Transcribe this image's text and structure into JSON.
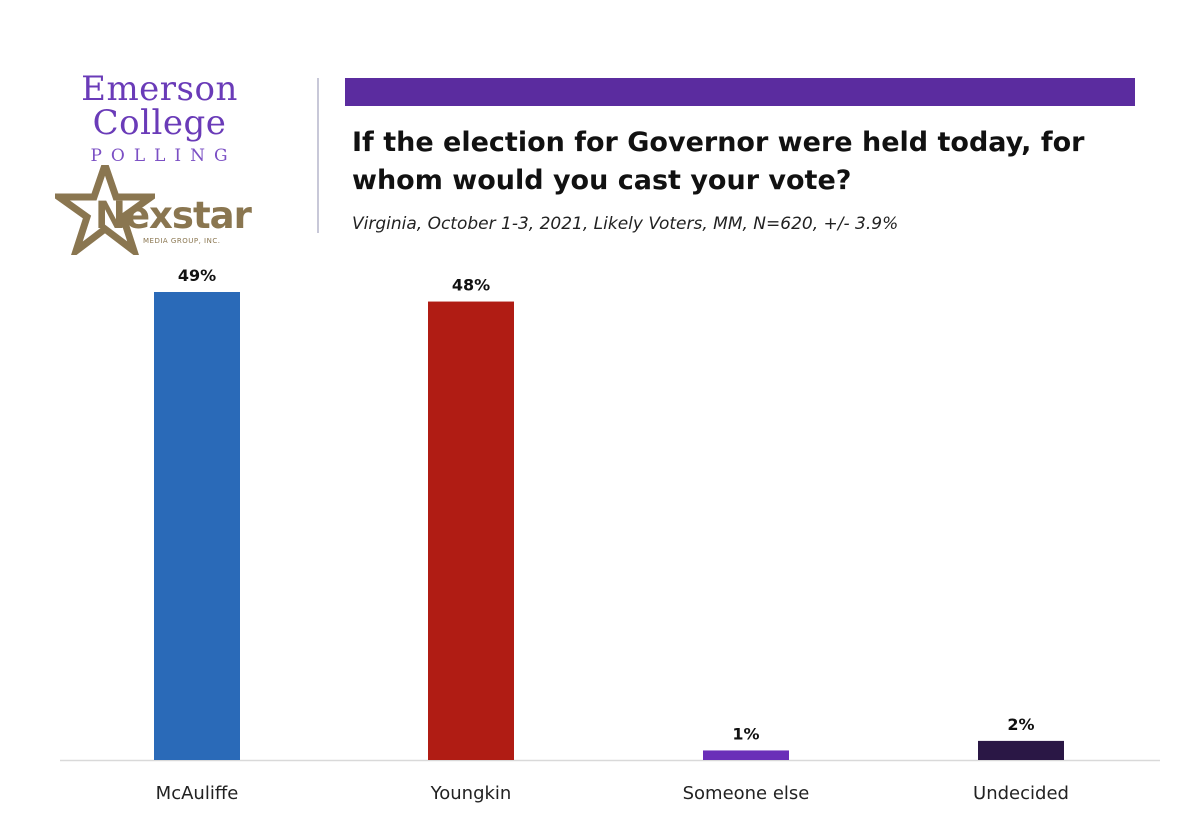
{
  "logos": {
    "emerson_name": "Emerson College",
    "emerson_sub": "POLLING",
    "nexstar_name": "Nexstar",
    "nexstar_tag": "MEDIA GROUP, INC."
  },
  "colors": {
    "accent": "#5b2c9f",
    "emerson_purple": "#6a3bb8",
    "nexstar_gold": "#8a7650"
  },
  "chart_data": {
    "type": "bar",
    "title": "If the election for Governor were held today, for whom would you cast your vote?",
    "subtitle": "Virginia, October 1-3, 2021, Likely Voters, MM, N=620, +/- 3.9%",
    "categories": [
      "McAuliffe",
      "Youngkin",
      "Someone else",
      "Undecided"
    ],
    "values": [
      49,
      48,
      1,
      2
    ],
    "value_labels": [
      "49%",
      "48%",
      "1%",
      "2%"
    ],
    "bar_colors": [
      "#2a6ab8",
      "#b01c14",
      "#6a2fb8",
      "#2a1745"
    ],
    "ylim": [
      0,
      49
    ],
    "grid": false,
    "legend": "none"
  }
}
